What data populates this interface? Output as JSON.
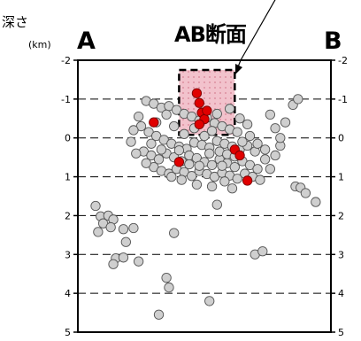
{
  "labels": {
    "ylabel": "深さ",
    "unit": "(km)",
    "section_title": "AB断面",
    "left_end": "A",
    "right_end": "B"
  },
  "colors": {
    "background_point": "#cfcfcf",
    "highlight_point": "#e00000",
    "box_fill": "#f2c2cc"
  },
  "chart_data": {
    "type": "scatter",
    "xlabel": "",
    "ylabel": "深さ (km)",
    "ylim": [
      -2,
      5
    ],
    "y_inverted": true,
    "grid": "horizontal dashed",
    "yticks": [
      "-2",
      "-1",
      "0",
      "1",
      "2",
      "3",
      "4",
      "5"
    ],
    "highlight_region": {
      "x": [
        0.4,
        0.62
      ],
      "y": [
        -1.75,
        -0.08
      ]
    },
    "series": [
      {
        "role": "background",
        "points": [
          [
            0.27,
            -0.95
          ],
          [
            0.3,
            -0.88
          ],
          [
            0.33,
            -0.78
          ],
          [
            0.36,
            -0.82
          ],
          [
            0.39,
            -0.72
          ],
          [
            0.42,
            -0.62
          ],
          [
            0.45,
            -0.55
          ],
          [
            0.48,
            -0.45
          ],
          [
            0.51,
            -0.52
          ],
          [
            0.54,
            -0.38
          ],
          [
            0.57,
            -0.3
          ],
          [
            0.6,
            -0.22
          ],
          [
            0.63,
            -0.15
          ],
          [
            0.25,
            -0.3
          ],
          [
            0.28,
            -0.15
          ],
          [
            0.31,
            -0.05
          ],
          [
            0.34,
            0.05
          ],
          [
            0.37,
            0.15
          ],
          [
            0.4,
            0.22
          ],
          [
            0.43,
            0.28
          ],
          [
            0.46,
            0.12
          ],
          [
            0.49,
            0.18
          ],
          [
            0.52,
            0.25
          ],
          [
            0.55,
            0.08
          ],
          [
            0.58,
            0.15
          ],
          [
            0.61,
            0.22
          ],
          [
            0.64,
            0.3
          ],
          [
            0.67,
            0.2
          ],
          [
            0.7,
            0.35
          ],
          [
            0.26,
            0.35
          ],
          [
            0.29,
            0.45
          ],
          [
            0.32,
            0.55
          ],
          [
            0.35,
            0.4
          ],
          [
            0.38,
            0.5
          ],
          [
            0.41,
            0.6
          ],
          [
            0.44,
            0.45
          ],
          [
            0.47,
            0.52
          ],
          [
            0.5,
            0.62
          ],
          [
            0.53,
            0.7
          ],
          [
            0.56,
            0.55
          ],
          [
            0.59,
            0.65
          ],
          [
            0.62,
            0.75
          ],
          [
            0.65,
            0.6
          ],
          [
            0.68,
            0.7
          ],
          [
            0.71,
            0.8
          ],
          [
            0.3,
            0.75
          ],
          [
            0.33,
            0.85
          ],
          [
            0.36,
            0.92
          ],
          [
            0.39,
            0.8
          ],
          [
            0.42,
            0.88
          ],
          [
            0.45,
            0.98
          ],
          [
            0.48,
            0.85
          ],
          [
            0.51,
            0.93
          ],
          [
            0.54,
            1.0
          ],
          [
            0.57,
            0.9
          ],
          [
            0.6,
            0.97
          ],
          [
            0.63,
            1.05
          ],
          [
            0.66,
            0.92
          ],
          [
            0.69,
            1.0
          ],
          [
            0.72,
            1.08
          ],
          [
            0.24,
            -0.55
          ],
          [
            0.22,
            -0.2
          ],
          [
            0.21,
            0.1
          ],
          [
            0.23,
            0.4
          ],
          [
            0.27,
            0.65
          ],
          [
            0.31,
            -0.4
          ],
          [
            0.35,
            -0.6
          ],
          [
            0.38,
            -0.3
          ],
          [
            0.42,
            -0.1
          ],
          [
            0.46,
            -0.25
          ],
          [
            0.5,
            -0.05
          ],
          [
            0.53,
            -0.18
          ],
          [
            0.56,
            0.35
          ],
          [
            0.59,
            0.42
          ],
          [
            0.62,
            0.48
          ],
          [
            0.65,
            0.1
          ],
          [
            0.68,
            -0.05
          ],
          [
            0.71,
            0.15
          ],
          [
            0.74,
            0.3
          ],
          [
            0.74,
            0.55
          ],
          [
            0.76,
            0.8
          ],
          [
            0.78,
            0.45
          ],
          [
            0.8,
            0.2
          ],
          [
            0.8,
            0.0
          ],
          [
            0.82,
            -0.4
          ],
          [
            0.78,
            -0.25
          ],
          [
            0.76,
            -0.6
          ],
          [
            0.85,
            -0.85
          ],
          [
            0.87,
            -1.0
          ],
          [
            0.4,
            0.32
          ],
          [
            0.44,
            0.68
          ],
          [
            0.48,
            0.72
          ],
          [
            0.52,
            0.4
          ],
          [
            0.57,
            0.72
          ],
          [
            0.33,
            0.3
          ],
          [
            0.29,
            0.15
          ],
          [
            0.55,
            -0.62
          ],
          [
            0.6,
            -0.75
          ],
          [
            0.64,
            -0.5
          ],
          [
            0.67,
            -0.35
          ],
          [
            0.37,
            1.0
          ],
          [
            0.41,
            1.08
          ],
          [
            0.58,
            1.12
          ],
          [
            0.47,
            1.2
          ],
          [
            0.53,
            1.25
          ],
          [
            0.61,
            1.3
          ],
          [
            0.86,
            1.25
          ],
          [
            0.88,
            1.28
          ],
          [
            0.9,
            1.42
          ],
          [
            0.94,
            1.65
          ],
          [
            0.55,
            1.72
          ],
          [
            0.07,
            1.75
          ],
          [
            0.09,
            2.02
          ],
          [
            0.1,
            2.2
          ],
          [
            0.12,
            2.0
          ],
          [
            0.14,
            2.1
          ],
          [
            0.13,
            2.3
          ],
          [
            0.18,
            2.35
          ],
          [
            0.22,
            2.32
          ],
          [
            0.08,
            2.42
          ],
          [
            0.19,
            2.68
          ],
          [
            0.38,
            2.45
          ],
          [
            0.15,
            3.1
          ],
          [
            0.18,
            3.08
          ],
          [
            0.24,
            3.18
          ],
          [
            0.14,
            3.25
          ],
          [
            0.7,
            3.0
          ],
          [
            0.73,
            2.92
          ],
          [
            0.35,
            3.6
          ],
          [
            0.36,
            3.85
          ],
          [
            0.52,
            4.2
          ],
          [
            0.32,
            4.55
          ]
        ]
      },
      {
        "role": "highlight",
        "points": [
          [
            0.47,
            -1.15
          ],
          [
            0.48,
            -0.9
          ],
          [
            0.49,
            -0.65
          ],
          [
            0.5,
            -0.48
          ],
          [
            0.51,
            -0.7
          ],
          [
            0.48,
            -0.35
          ],
          [
            0.3,
            -0.4
          ],
          [
            0.4,
            0.62
          ],
          [
            0.62,
            0.3
          ],
          [
            0.64,
            0.45
          ],
          [
            0.67,
            1.1
          ]
        ]
      }
    ]
  }
}
